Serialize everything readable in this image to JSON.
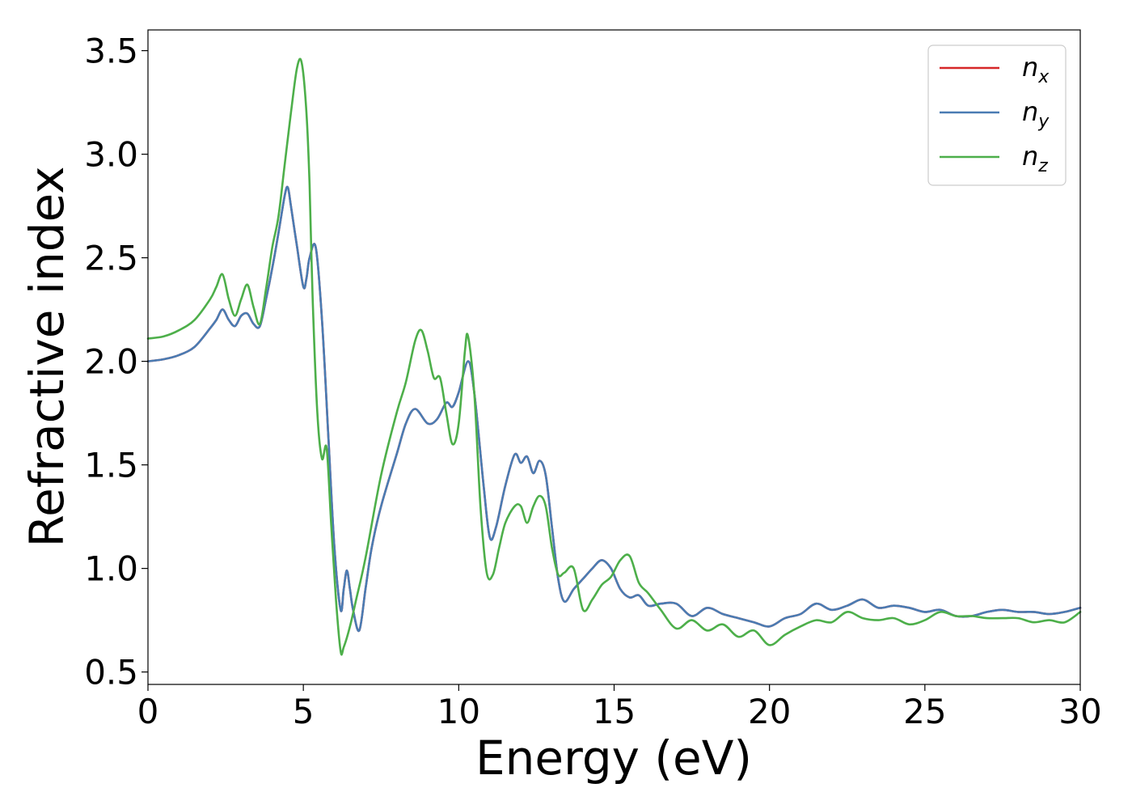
{
  "chart_data": {
    "type": "line",
    "xlabel": "Energy (eV)",
    "ylabel": "Refractive index",
    "xlim": [
      0,
      30
    ],
    "ylim": [
      0.44,
      3.6
    ],
    "xticks": [
      0,
      5,
      10,
      15,
      20,
      25,
      30
    ],
    "yticks": [
      0.5,
      1.0,
      1.5,
      2.0,
      2.5,
      3.0,
      3.5
    ],
    "xtick_labels": [
      "0",
      "5",
      "10",
      "15",
      "20",
      "25",
      "30"
    ],
    "ytick_labels": [
      "0.5",
      "1.0",
      "1.5",
      "2.0",
      "2.5",
      "3.0",
      "3.5"
    ],
    "grid": false,
    "legend_position": "top-right",
    "series": [
      {
        "name": "n_x",
        "legend_base": "n",
        "legend_sub": "x",
        "color": "#d62728",
        "x": [
          0,
          0.5,
          1.0,
          1.5,
          2.0,
          2.2,
          2.4,
          2.6,
          2.8,
          3.0,
          3.2,
          3.4,
          3.6,
          3.8,
          4.0,
          4.2,
          4.4,
          4.5,
          4.6,
          4.8,
          5.0,
          5.1,
          5.2,
          5.4,
          5.6,
          5.8,
          6.0,
          6.2,
          6.3,
          6.4,
          6.5,
          6.6,
          6.8,
          7.0,
          7.2,
          7.5,
          8.0,
          8.3,
          8.6,
          9.0,
          9.3,
          9.6,
          9.8,
          10.0,
          10.3,
          10.5,
          10.8,
          11.0,
          11.2,
          11.5,
          11.8,
          12.0,
          12.2,
          12.4,
          12.6,
          12.8,
          13.0,
          13.2,
          13.4,
          13.7,
          14.0,
          14.3,
          14.6,
          14.9,
          15.2,
          15.5,
          15.8,
          16.1,
          16.5,
          17.0,
          17.5,
          18.0,
          18.5,
          19.0,
          19.5,
          20.0,
          20.5,
          21.0,
          21.5,
          22.0,
          22.5,
          23.0,
          23.5,
          24.0,
          24.5,
          25.0,
          25.5,
          26.0,
          26.5,
          27.0,
          27.5,
          28.0,
          28.5,
          29.0,
          29.5,
          30.0
        ],
        "y": [
          2.0,
          2.01,
          2.03,
          2.07,
          2.16,
          2.2,
          2.25,
          2.2,
          2.17,
          2.22,
          2.23,
          2.18,
          2.17,
          2.3,
          2.45,
          2.62,
          2.8,
          2.84,
          2.75,
          2.55,
          2.36,
          2.4,
          2.5,
          2.55,
          2.2,
          1.65,
          1.1,
          0.8,
          0.9,
          0.99,
          0.9,
          0.8,
          0.7,
          0.9,
          1.1,
          1.3,
          1.55,
          1.7,
          1.77,
          1.7,
          1.72,
          1.8,
          1.78,
          1.85,
          2.0,
          1.85,
          1.4,
          1.15,
          1.2,
          1.4,
          1.55,
          1.51,
          1.54,
          1.46,
          1.52,
          1.45,
          1.2,
          0.95,
          0.84,
          0.9,
          0.95,
          1.0,
          1.04,
          1.0,
          0.9,
          0.86,
          0.87,
          0.82,
          0.83,
          0.83,
          0.77,
          0.81,
          0.78,
          0.76,
          0.74,
          0.72,
          0.76,
          0.78,
          0.83,
          0.8,
          0.82,
          0.85,
          0.81,
          0.82,
          0.81,
          0.79,
          0.8,
          0.77,
          0.77,
          0.79,
          0.8,
          0.79,
          0.79,
          0.78,
          0.79,
          0.81
        ]
      },
      {
        "name": "n_y",
        "legend_base": "n",
        "legend_sub": "y",
        "color": "#4a7cb3",
        "x": [
          0,
          0.5,
          1.0,
          1.5,
          2.0,
          2.2,
          2.4,
          2.6,
          2.8,
          3.0,
          3.2,
          3.4,
          3.6,
          3.8,
          4.0,
          4.2,
          4.4,
          4.5,
          4.6,
          4.8,
          5.0,
          5.1,
          5.2,
          5.4,
          5.6,
          5.8,
          6.0,
          6.2,
          6.3,
          6.4,
          6.5,
          6.6,
          6.8,
          7.0,
          7.2,
          7.5,
          8.0,
          8.3,
          8.6,
          9.0,
          9.3,
          9.6,
          9.8,
          10.0,
          10.3,
          10.5,
          10.8,
          11.0,
          11.2,
          11.5,
          11.8,
          12.0,
          12.2,
          12.4,
          12.6,
          12.8,
          13.0,
          13.2,
          13.4,
          13.7,
          14.0,
          14.3,
          14.6,
          14.9,
          15.2,
          15.5,
          15.8,
          16.1,
          16.5,
          17.0,
          17.5,
          18.0,
          18.5,
          19.0,
          19.5,
          20.0,
          20.5,
          21.0,
          21.5,
          22.0,
          22.5,
          23.0,
          23.5,
          24.0,
          24.5,
          25.0,
          25.5,
          26.0,
          26.5,
          27.0,
          27.5,
          28.0,
          28.5,
          29.0,
          29.5,
          30.0
        ],
        "y": [
          2.0,
          2.01,
          2.03,
          2.07,
          2.16,
          2.2,
          2.25,
          2.2,
          2.17,
          2.22,
          2.23,
          2.18,
          2.17,
          2.3,
          2.45,
          2.62,
          2.8,
          2.84,
          2.75,
          2.55,
          2.36,
          2.4,
          2.5,
          2.55,
          2.2,
          1.65,
          1.1,
          0.8,
          0.9,
          0.99,
          0.9,
          0.8,
          0.7,
          0.9,
          1.1,
          1.3,
          1.55,
          1.7,
          1.77,
          1.7,
          1.72,
          1.8,
          1.78,
          1.85,
          2.0,
          1.85,
          1.4,
          1.15,
          1.2,
          1.4,
          1.55,
          1.51,
          1.54,
          1.46,
          1.52,
          1.45,
          1.2,
          0.95,
          0.84,
          0.9,
          0.95,
          1.0,
          1.04,
          1.0,
          0.9,
          0.86,
          0.87,
          0.82,
          0.83,
          0.83,
          0.77,
          0.81,
          0.78,
          0.76,
          0.74,
          0.72,
          0.76,
          0.78,
          0.83,
          0.8,
          0.82,
          0.85,
          0.81,
          0.82,
          0.81,
          0.79,
          0.8,
          0.77,
          0.77,
          0.79,
          0.8,
          0.79,
          0.79,
          0.78,
          0.79,
          0.81
        ]
      },
      {
        "name": "n_z",
        "legend_base": "n",
        "legend_sub": "z",
        "color": "#4daf4a",
        "x": [
          0,
          0.5,
          1.0,
          1.5,
          2.0,
          2.2,
          2.4,
          2.6,
          2.8,
          3.0,
          3.2,
          3.4,
          3.6,
          3.8,
          4.0,
          4.2,
          4.4,
          4.6,
          4.8,
          4.95,
          5.1,
          5.2,
          5.3,
          5.45,
          5.6,
          5.75,
          5.9,
          6.05,
          6.2,
          6.3,
          6.5,
          6.7,
          7.0,
          7.5,
          8.0,
          8.3,
          8.6,
          8.8,
          9.0,
          9.2,
          9.4,
          9.6,
          9.8,
          10.0,
          10.2,
          10.3,
          10.5,
          10.7,
          10.9,
          11.1,
          11.3,
          11.5,
          11.8,
          12.0,
          12.2,
          12.4,
          12.6,
          12.8,
          13.0,
          13.2,
          13.4,
          13.7,
          14.0,
          14.3,
          14.6,
          14.9,
          15.2,
          15.5,
          15.8,
          16.1,
          16.5,
          17.0,
          17.5,
          18.0,
          18.5,
          19.0,
          19.5,
          20.0,
          20.5,
          21.0,
          21.5,
          22.0,
          22.5,
          23.0,
          23.5,
          24.0,
          24.5,
          25.0,
          25.5,
          26.0,
          26.5,
          27.0,
          27.5,
          28.0,
          28.5,
          29.0,
          29.5,
          30.0
        ],
        "y": [
          2.11,
          2.12,
          2.15,
          2.2,
          2.3,
          2.36,
          2.42,
          2.3,
          2.22,
          2.3,
          2.37,
          2.26,
          2.18,
          2.35,
          2.55,
          2.7,
          2.95,
          3.2,
          3.42,
          3.44,
          3.2,
          2.85,
          2.3,
          1.75,
          1.53,
          1.58,
          1.2,
          0.85,
          0.6,
          0.62,
          0.72,
          0.85,
          1.05,
          1.45,
          1.75,
          1.9,
          2.1,
          2.15,
          2.05,
          1.92,
          1.92,
          1.75,
          1.6,
          1.7,
          2.05,
          2.12,
          1.85,
          1.3,
          0.98,
          0.97,
          1.1,
          1.22,
          1.3,
          1.3,
          1.22,
          1.3,
          1.35,
          1.3,
          1.1,
          0.97,
          0.98,
          1.0,
          0.8,
          0.85,
          0.92,
          0.96,
          1.04,
          1.06,
          0.93,
          0.88,
          0.8,
          0.71,
          0.75,
          0.7,
          0.73,
          0.67,
          0.7,
          0.63,
          0.68,
          0.72,
          0.75,
          0.74,
          0.79,
          0.76,
          0.75,
          0.76,
          0.73,
          0.75,
          0.79,
          0.77,
          0.77,
          0.76,
          0.76,
          0.76,
          0.74,
          0.75,
          0.74,
          0.79
        ]
      }
    ]
  }
}
